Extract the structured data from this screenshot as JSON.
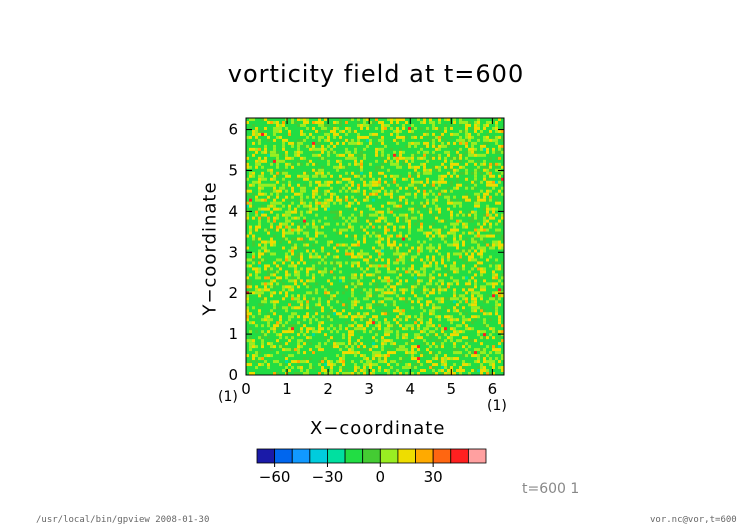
{
  "chart_data": {
    "type": "heatmap",
    "title": "vorticity field at t=600",
    "xlabel": "X−coordinate",
    "ylabel": "Y−coordinate",
    "x_unit_tag": "(1)",
    "y_unit_tag": "(1)",
    "xlim": [
      0,
      6.283
    ],
    "ylim": [
      0,
      6.283
    ],
    "x_ticks": [
      "0",
      "1",
      "2",
      "3",
      "4",
      "5",
      "6"
    ],
    "y_ticks": [
      "0",
      "1",
      "2",
      "3",
      "4",
      "5",
      "6"
    ],
    "field_description": "fine-scale turbulent vorticity, values mostly between -15 and 15",
    "colorbar": {
      "levels": [
        -70,
        -60,
        -50,
        -40,
        -30,
        -20,
        -10,
        0,
        10,
        20,
        30,
        40,
        50
      ],
      "tick_labels": [
        "−60",
        "−30",
        "0",
        "30"
      ],
      "tick_values": [
        -60,
        -30,
        0,
        30
      ],
      "colors": [
        "#1a1aa8",
        "#0066ee",
        "#1199ff",
        "#00ccdd",
        "#00e0a0",
        "#22dd44",
        "#44cc33",
        "#99ee22",
        "#eedd00",
        "#ffaa00",
        "#ff6611",
        "#ff2020",
        "#ffa0a0"
      ]
    },
    "grid": false,
    "legend_placement": "bottom"
  },
  "annotation": "t=600 1",
  "footer": {
    "left": "/usr/local/bin/gpview  2008-01-30",
    "right": "vor.nc@vor,t=600"
  }
}
